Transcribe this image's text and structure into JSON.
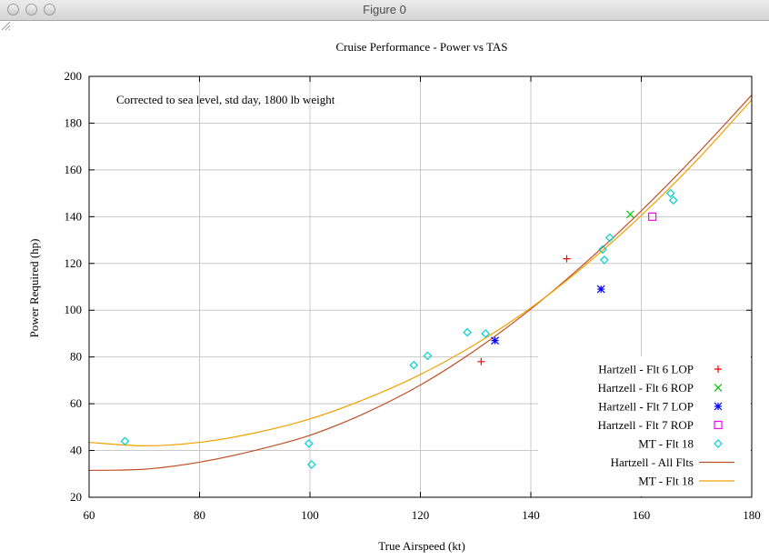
{
  "window": {
    "title": "Figure 0"
  },
  "chart_data": {
    "type": "scatter",
    "title": "Cruise Performance - Power vs TAS",
    "annotation": "Corrected to sea level, std day, 1800 lb weight",
    "xlabel": "True Airspeed (kt)",
    "ylabel": "Power Required (hp)",
    "xlim": [
      60,
      180
    ],
    "ylim": [
      20,
      200
    ],
    "xticks": [
      60,
      80,
      100,
      120,
      140,
      160,
      180
    ],
    "yticks": [
      20,
      40,
      60,
      80,
      100,
      120,
      140,
      160,
      180,
      200
    ],
    "grid": true,
    "legend_position": "bottom-right",
    "series": [
      {
        "name": "Hartzell - Flt 6 LOP",
        "kind": "points",
        "marker": "plus",
        "color": "#ff0000",
        "points": [
          [
            131,
            78
          ],
          [
            146.5,
            122
          ]
        ]
      },
      {
        "name": "Hartzell - Flt 6 ROP",
        "kind": "points",
        "marker": "cross",
        "color": "#00c000",
        "points": [
          [
            158,
            141
          ]
        ]
      },
      {
        "name": "Hartzell - Flt 7 LOP",
        "kind": "points",
        "marker": "star",
        "color": "#0000ff",
        "points": [
          [
            133.5,
            87
          ],
          [
            152.7,
            109
          ]
        ]
      },
      {
        "name": "Hartzell - Flt 7 ROP",
        "kind": "points",
        "marker": "square",
        "color": "#ff00ff",
        "points": [
          [
            162,
            140
          ]
        ]
      },
      {
        "name": "MT - Flt 18",
        "kind": "points",
        "marker": "diamond",
        "color": "#00d0d0",
        "points": [
          [
            66.5,
            44
          ],
          [
            99.8,
            43
          ],
          [
            100.3,
            34
          ],
          [
            118.8,
            76.5
          ],
          [
            121.3,
            80.5
          ],
          [
            128.5,
            90.5
          ],
          [
            131.8,
            90
          ],
          [
            153,
            126
          ],
          [
            153.3,
            121.5
          ],
          [
            154.3,
            131
          ],
          [
            165.3,
            150
          ],
          [
            165.8,
            147
          ]
        ]
      },
      {
        "name": "Hartzell - All Flts",
        "kind": "line",
        "color": "#c05028",
        "points": [
          [
            60,
            31.5
          ],
          [
            70,
            32
          ],
          [
            80,
            35
          ],
          [
            90,
            40
          ],
          [
            100,
            46.5
          ],
          [
            110,
            56
          ],
          [
            120,
            68
          ],
          [
            130,
            83
          ],
          [
            140,
            100.5
          ],
          [
            150,
            120.5
          ],
          [
            160,
            142.5
          ],
          [
            170,
            166.5
          ],
          [
            180,
            192
          ]
        ]
      },
      {
        "name": "MT - Flt 18",
        "kind": "line",
        "color": "#f0a000",
        "points": [
          [
            60,
            43.5
          ],
          [
            70,
            42
          ],
          [
            80,
            43.5
          ],
          [
            90,
            47.5
          ],
          [
            100,
            53.5
          ],
          [
            110,
            62
          ],
          [
            120,
            72.5
          ],
          [
            130,
            85.5
          ],
          [
            140,
            101
          ],
          [
            150,
            119.5
          ],
          [
            160,
            140.5
          ],
          [
            170,
            164
          ],
          [
            180,
            190
          ]
        ]
      }
    ]
  }
}
